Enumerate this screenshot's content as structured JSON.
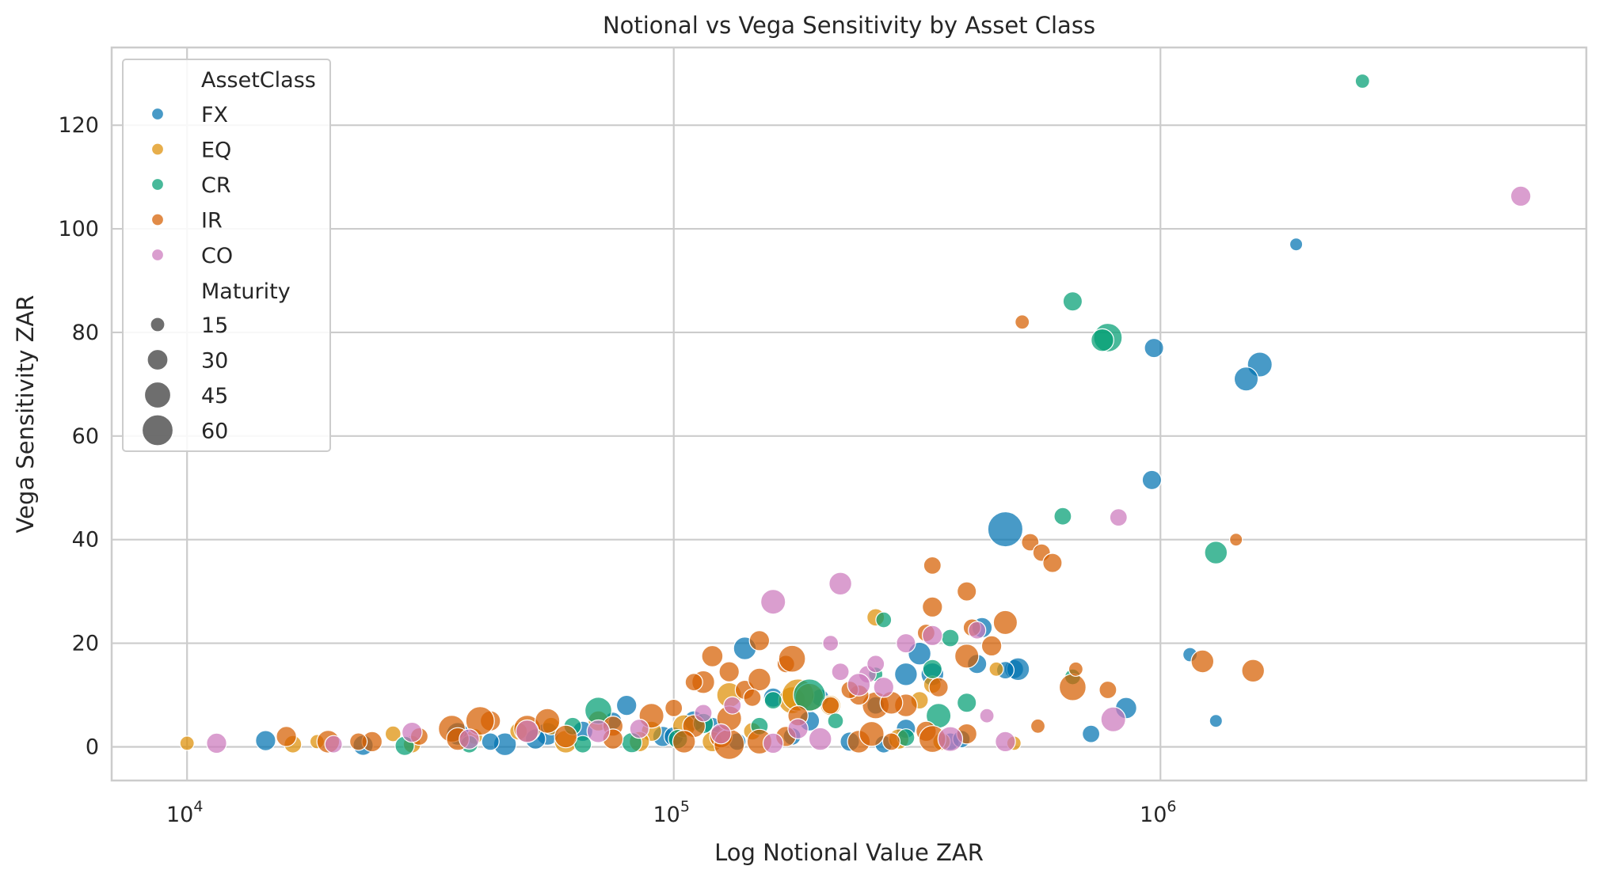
{
  "chart_data": {
    "type": "scatter",
    "title": "Notional vs Vega Sensitivity by Asset Class",
    "xlabel": "Log Notional Value ZAR",
    "ylabel": "Vega Sensitivity ZAR",
    "x_scale": "log",
    "xlim": [
      7000,
      7500000
    ],
    "ylim": [
      -6.5,
      135
    ],
    "x_ticks": [
      {
        "value": 10000,
        "base": "10",
        "exp": "4"
      },
      {
        "value": 100000,
        "base": "10",
        "exp": "5"
      },
      {
        "value": 1000000,
        "base": "10",
        "exp": "6"
      }
    ],
    "y_ticks": [
      0,
      20,
      40,
      60,
      80,
      100,
      120
    ],
    "grid": true,
    "legend_position": "top-left",
    "legend": {
      "hue_title": "AssetClass",
      "size_title": "Maturity",
      "size_entries": [
        15,
        30,
        45,
        60
      ]
    },
    "series": [
      {
        "name": "FX",
        "color": "#0173b2",
        "points": [
          [
            1900000,
            97,
            8
          ],
          [
            1600000,
            73.8,
            30
          ],
          [
            1500000,
            71,
            28
          ],
          [
            970000,
            77,
            18
          ],
          [
            960000,
            51.5,
            18
          ],
          [
            480000,
            42,
            60
          ],
          [
            850000,
            7.5,
            22
          ],
          [
            720000,
            2.5,
            15
          ],
          [
            1300000,
            5,
            8
          ],
          [
            1150000,
            17.8,
            10
          ],
          [
            140000,
            19,
            25
          ],
          [
            160000,
            9.5,
            18
          ],
          [
            80000,
            8,
            20
          ],
          [
            200000,
            9.5,
            15
          ],
          [
            300000,
            14,
            25
          ],
          [
            420000,
            16,
            18
          ],
          [
            430000,
            23,
            20
          ],
          [
            500000,
            15,
            18
          ],
          [
            510000,
            15,
            25
          ],
          [
            480000,
            14.8,
            15
          ],
          [
            320000,
            18,
            25
          ],
          [
            340000,
            14,
            25
          ],
          [
            95000,
            2,
            20
          ],
          [
            110000,
            5,
            20
          ],
          [
            120000,
            4,
            15
          ],
          [
            190000,
            5,
            20
          ],
          [
            14500,
            1.2,
            20
          ],
          [
            23000,
            0.3,
            20
          ],
          [
            45000,
            0.5,
            25
          ],
          [
            55000,
            2.5,
            25
          ],
          [
            65000,
            3,
            20
          ],
          [
            75000,
            5,
            15
          ],
          [
            100000,
            2,
            18
          ],
          [
            135000,
            1,
            15
          ],
          [
            175000,
            2,
            15
          ],
          [
            230000,
            1,
            18
          ],
          [
            270000,
            0.5,
            15
          ],
          [
            300000,
            3.5,
            18
          ],
          [
            370000,
            1,
            15
          ],
          [
            390000,
            1.5,
            15
          ],
          [
            36000,
            2.5,
            25
          ],
          [
            42000,
            1,
            15
          ],
          [
            52000,
            1.5,
            20
          ],
          [
            260000,
            8,
            15
          ]
        ]
      },
      {
        "name": "EQ",
        "color": "#de8f05",
        "points": [
          [
            10000,
            0.7,
            10
          ],
          [
            16500,
            0.5,
            15
          ],
          [
            18500,
            1,
            10
          ],
          [
            26500,
            2.5,
            12
          ],
          [
            29000,
            0.5,
            15
          ],
          [
            39000,
            2,
            12
          ],
          [
            48000,
            3,
            15
          ],
          [
            56000,
            4,
            15
          ],
          [
            70000,
            5,
            20
          ],
          [
            90000,
            3,
            20
          ],
          [
            105000,
            4,
            25
          ],
          [
            130000,
            10,
            30
          ],
          [
            175000,
            9,
            35
          ],
          [
            180000,
            10,
            50
          ],
          [
            190000,
            9.5,
            40
          ],
          [
            210000,
            8,
            20
          ],
          [
            260000,
            25,
            15
          ],
          [
            290000,
            1.5,
            20
          ],
          [
            320000,
            9,
            15
          ],
          [
            340000,
            12,
            15
          ],
          [
            355000,
            1,
            15
          ],
          [
            460000,
            15,
            10
          ],
          [
            500000,
            0.7,
            10
          ],
          [
            145000,
            3,
            15
          ],
          [
            85000,
            1,
            20
          ],
          [
            60000,
            1,
            25
          ],
          [
            120000,
            1,
            20
          ]
        ]
      },
      {
        "name": "CR",
        "color": "#029e73",
        "points": [
          [
            2600000,
            128.5,
            10
          ],
          [
            660000,
            86,
            18
          ],
          [
            780000,
            79,
            40
          ],
          [
            760000,
            78.5,
            25
          ],
          [
            1300000,
            37.5,
            25
          ],
          [
            630000,
            44.5,
            15
          ],
          [
            400000,
            8.5,
            18
          ],
          [
            350000,
            6,
            30
          ],
          [
            190000,
            10,
            50
          ],
          [
            70000,
            7,
            35
          ],
          [
            370000,
            21,
            15
          ],
          [
            270000,
            24.5,
            12
          ],
          [
            340000,
            15,
            18
          ],
          [
            215000,
            5,
            12
          ],
          [
            160000,
            9,
            15
          ],
          [
            115000,
            4.5,
            20
          ],
          [
            82000,
            0.8,
            20
          ],
          [
            102000,
            1.5,
            18
          ],
          [
            38000,
            0.5,
            15
          ],
          [
            28000,
            0.2,
            18
          ],
          [
            65000,
            0.5,
            15
          ],
          [
            300000,
            1.8,
            15
          ],
          [
            150000,
            4,
            15
          ],
          [
            260000,
            14,
            10
          ],
          [
            660000,
            13.5,
            12
          ],
          [
            62000,
            4,
            15
          ]
        ]
      },
      {
        "name": "IR",
        "color": "#d55e00",
        "points": [
          [
            520000,
            82,
            10
          ],
          [
            1430000,
            40,
            8
          ],
          [
            1220000,
            16.5,
            25
          ],
          [
            1550000,
            14.7,
            25
          ],
          [
            780000,
            11,
            15
          ],
          [
            660000,
            11.5,
            35
          ],
          [
            670000,
            15,
            10
          ],
          [
            560000,
            4,
            10
          ],
          [
            480000,
            24,
            28
          ],
          [
            540000,
            39.5,
            15
          ],
          [
            570000,
            37.5,
            15
          ],
          [
            600000,
            35.5,
            18
          ],
          [
            340000,
            35,
            15
          ],
          [
            400000,
            30,
            18
          ],
          [
            340000,
            27,
            20
          ],
          [
            410000,
            23,
            15
          ],
          [
            450000,
            19.5,
            20
          ],
          [
            330000,
            22,
            15
          ],
          [
            400000,
            17.5,
            28
          ],
          [
            350000,
            11.5,
            18
          ],
          [
            300000,
            8,
            25
          ],
          [
            260000,
            8,
            35
          ],
          [
            240000,
            10,
            20
          ],
          [
            230000,
            11,
            15
          ],
          [
            210000,
            8,
            15
          ],
          [
            170000,
            16,
            15
          ],
          [
            175000,
            17,
            35
          ],
          [
            150000,
            20.5,
            20
          ],
          [
            130000,
            14.5,
            20
          ],
          [
            140000,
            11,
            18
          ],
          [
            150000,
            13,
            25
          ],
          [
            145000,
            9.5,
            15
          ],
          [
            120000,
            17.5,
            22
          ],
          [
            115000,
            12.5,
            25
          ],
          [
            110000,
            12.5,
            15
          ],
          [
            100000,
            7.5,
            15
          ],
          [
            90000,
            6,
            30
          ],
          [
            75000,
            4,
            20
          ],
          [
            60000,
            2,
            25
          ],
          [
            50000,
            3.5,
            35
          ],
          [
            42000,
            5,
            20
          ],
          [
            35000,
            3.5,
            35
          ],
          [
            30000,
            2,
            15
          ],
          [
            24000,
            1,
            20
          ],
          [
            19500,
            1,
            25
          ],
          [
            16000,
            2,
            20
          ],
          [
            22500,
            1,
            15
          ],
          [
            40000,
            5,
            40
          ],
          [
            55000,
            5,
            30
          ],
          [
            110000,
            4,
            25
          ],
          [
            125000,
            2,
            25
          ],
          [
            130000,
            0.5,
            45
          ],
          [
            150000,
            1,
            30
          ],
          [
            170000,
            2,
            20
          ],
          [
            240000,
            1,
            25
          ],
          [
            255000,
            2.5,
            30
          ],
          [
            280000,
            1,
            15
          ],
          [
            330000,
            3,
            20
          ],
          [
            340000,
            1.5,
            35
          ],
          [
            400000,
            2.5,
            20
          ],
          [
            105000,
            1,
            25
          ],
          [
            75000,
            1.5,
            20
          ],
          [
            36000,
            1.5,
            25
          ],
          [
            130000,
            5.5,
            30
          ],
          [
            280000,
            8.5,
            25
          ],
          [
            180000,
            6,
            20
          ]
        ]
      },
      {
        "name": "CO",
        "color": "#cc78bc",
        "points": [
          [
            5500000,
            106.3,
            20
          ],
          [
            820000,
            44.3,
            15
          ],
          [
            800000,
            5.3,
            30
          ],
          [
            480000,
            1,
            20
          ],
          [
            440000,
            6,
            10
          ],
          [
            420000,
            22.5,
            15
          ],
          [
            340000,
            21.5,
            20
          ],
          [
            300000,
            20,
            18
          ],
          [
            220000,
            31.5,
            25
          ],
          [
            160000,
            28,
            30
          ],
          [
            210000,
            20,
            12
          ],
          [
            220000,
            14.5,
            15
          ],
          [
            250000,
            14,
            15
          ],
          [
            240000,
            12,
            25
          ],
          [
            180000,
            3.5,
            20
          ],
          [
            200000,
            1.5,
            25
          ],
          [
            160000,
            0.7,
            20
          ],
          [
            125000,
            2.5,
            20
          ],
          [
            115000,
            6.5,
            15
          ],
          [
            85000,
            3.5,
            18
          ],
          [
            70000,
            3,
            25
          ],
          [
            50000,
            3,
            25
          ],
          [
            38000,
            1.5,
            20
          ],
          [
            29000,
            2.8,
            20
          ],
          [
            20000,
            0.5,
            15
          ],
          [
            11500,
            0.7,
            20
          ],
          [
            370000,
            1.5,
            30
          ],
          [
            260000,
            16,
            15
          ],
          [
            270000,
            11.5,
            20
          ],
          [
            132000,
            8,
            15
          ]
        ]
      }
    ]
  }
}
